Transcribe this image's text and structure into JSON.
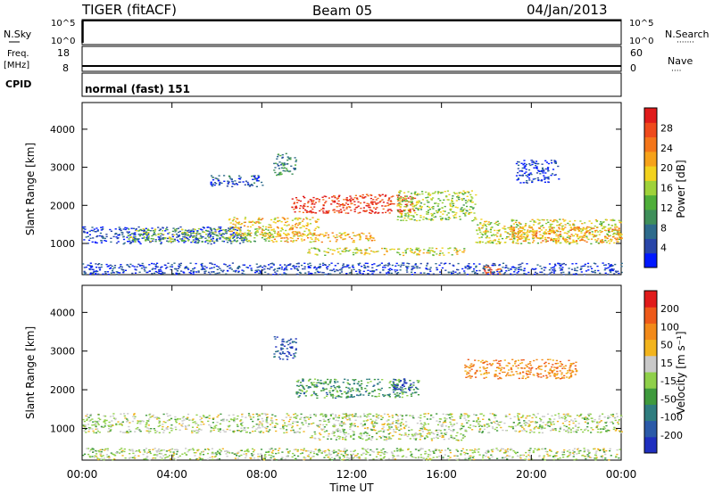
{
  "header": {
    "radar": "TIGER (fitACF)",
    "beam": "Beam 05",
    "date": "04/Jan/2013"
  },
  "status_panels": {
    "nsky_label": "N.Sky",
    "freq_label_1": "Freq.",
    "freq_label_2": "[MHz]",
    "cpid_label": "CPID",
    "nsearch_label": "N.Search",
    "nave_label": "Nave",
    "nsky_ticks": [
      "10^5",
      "10^0"
    ],
    "nsearch_ticks": [
      "10^5",
      "10^0"
    ],
    "freq_ticks": [
      "18",
      "8"
    ],
    "nave_ticks": [
      "60",
      "0"
    ],
    "cpid_text": "normal (fast) 151",
    "dotted_marker": "·······",
    "nave_marker": "····"
  },
  "colors": {
    "power_scale": [
      "#0018ff",
      "#2946a8",
      "#2e6b8c",
      "#3f8f5a",
      "#4fae3a",
      "#9fd23a",
      "#f2d21e",
      "#f6a21a",
      "#f4761a",
      "#ef4a1c",
      "#e01b1b"
    ],
    "velocity_scale": [
      "#1f2fbf",
      "#2b5aa8",
      "#2f7d7f",
      "#3f9a3d",
      "#8fd04a",
      "#c9c9c9",
      "#f2b41e",
      "#f28a1a",
      "#ee5a1a",
      "#e01b1b"
    ],
    "frame": "#000000"
  },
  "chart_data": [
    {
      "type": "heatmap",
      "name": "power",
      "ylabel": "Slant Range [km]",
      "colorbar_label": "Power [dB]",
      "colorbar_ticks": [
        "28",
        "24",
        "20",
        "16",
        "12",
        "8",
        "4"
      ],
      "yticks": [
        "4000",
        "3000",
        "2000",
        "1000"
      ],
      "ylim": [
        180,
        4700
      ],
      "xlim": [
        0,
        24
      ],
      "bands": [
        {
          "t0": 0,
          "t1": 7.2,
          "r0": 1000,
          "r1": 1450,
          "level": 0.12
        },
        {
          "t0": 2,
          "t1": 8.5,
          "r0": 1050,
          "r1": 1400,
          "level": 0.45
        },
        {
          "t0": 6.5,
          "t1": 10.5,
          "r0": 1200,
          "r1": 1700,
          "level": 0.62
        },
        {
          "t0": 9.3,
          "t1": 14.8,
          "r0": 1800,
          "r1": 2300,
          "level": 0.9
        },
        {
          "t0": 8,
          "t1": 13,
          "r0": 1050,
          "r1": 1300,
          "level": 0.65
        },
        {
          "t0": 10,
          "t1": 17,
          "r0": 700,
          "r1": 900,
          "level": 0.55
        },
        {
          "t0": 14,
          "t1": 17.5,
          "r0": 1600,
          "r1": 2400,
          "level": 0.48
        },
        {
          "t0": 17.5,
          "t1": 24,
          "r0": 1000,
          "r1": 1650,
          "level": 0.55
        },
        {
          "t0": 19,
          "t1": 24,
          "r0": 1050,
          "r1": 1450,
          "level": 0.7
        },
        {
          "t0": 17.8,
          "t1": 18.6,
          "r0": 200,
          "r1": 450,
          "level": 0.85
        },
        {
          "t0": 0,
          "t1": 24,
          "r0": 200,
          "r1": 500,
          "level": 0.12
        },
        {
          "t0": 5.5,
          "t1": 8,
          "r0": 2500,
          "r1": 2800,
          "level": 0.15
        },
        {
          "t0": 8.5,
          "t1": 9.5,
          "r0": 2800,
          "r1": 3400,
          "level": 0.3
        },
        {
          "t0": 19.3,
          "t1": 21.2,
          "r0": 2600,
          "r1": 3200,
          "level": 0.1
        }
      ]
    },
    {
      "type": "heatmap",
      "name": "velocity",
      "ylabel": "Slant Range [km]",
      "colorbar_label": "Velocity [m s⁻¹]",
      "colorbar_ticks": [
        "200",
        "100",
        "50",
        "15",
        "-15",
        "-50",
        "-100",
        "-200"
      ],
      "yticks": [
        "4000",
        "3000",
        "2000",
        "1000"
      ],
      "xticks": [
        "00:00",
        "04:00",
        "08:00",
        "12:00",
        "16:00",
        "20:00",
        "00:00"
      ],
      "xlabel": "Time UT",
      "ylim": [
        180,
        4700
      ],
      "xlim": [
        0,
        24
      ],
      "bands": [
        {
          "t0": 0,
          "t1": 24,
          "r0": 900,
          "r1": 1400,
          "level": 0.5
        },
        {
          "t0": 9.5,
          "t1": 15,
          "r0": 1800,
          "r1": 2300,
          "level": 0.32
        },
        {
          "t0": 13.8,
          "t1": 14.6,
          "r0": 2000,
          "r1": 2300,
          "level": 0.02
        },
        {
          "t0": 10,
          "t1": 17,
          "r0": 700,
          "r1": 900,
          "level": 0.5
        },
        {
          "t0": 0,
          "t1": 24,
          "r0": 200,
          "r1": 500,
          "level": 0.5
        },
        {
          "t0": 17,
          "t1": 22,
          "r0": 2300,
          "r1": 2800,
          "level": 0.75
        },
        {
          "t0": 8.5,
          "t1": 9.5,
          "r0": 2800,
          "r1": 3400,
          "level": 0.1
        }
      ]
    }
  ]
}
